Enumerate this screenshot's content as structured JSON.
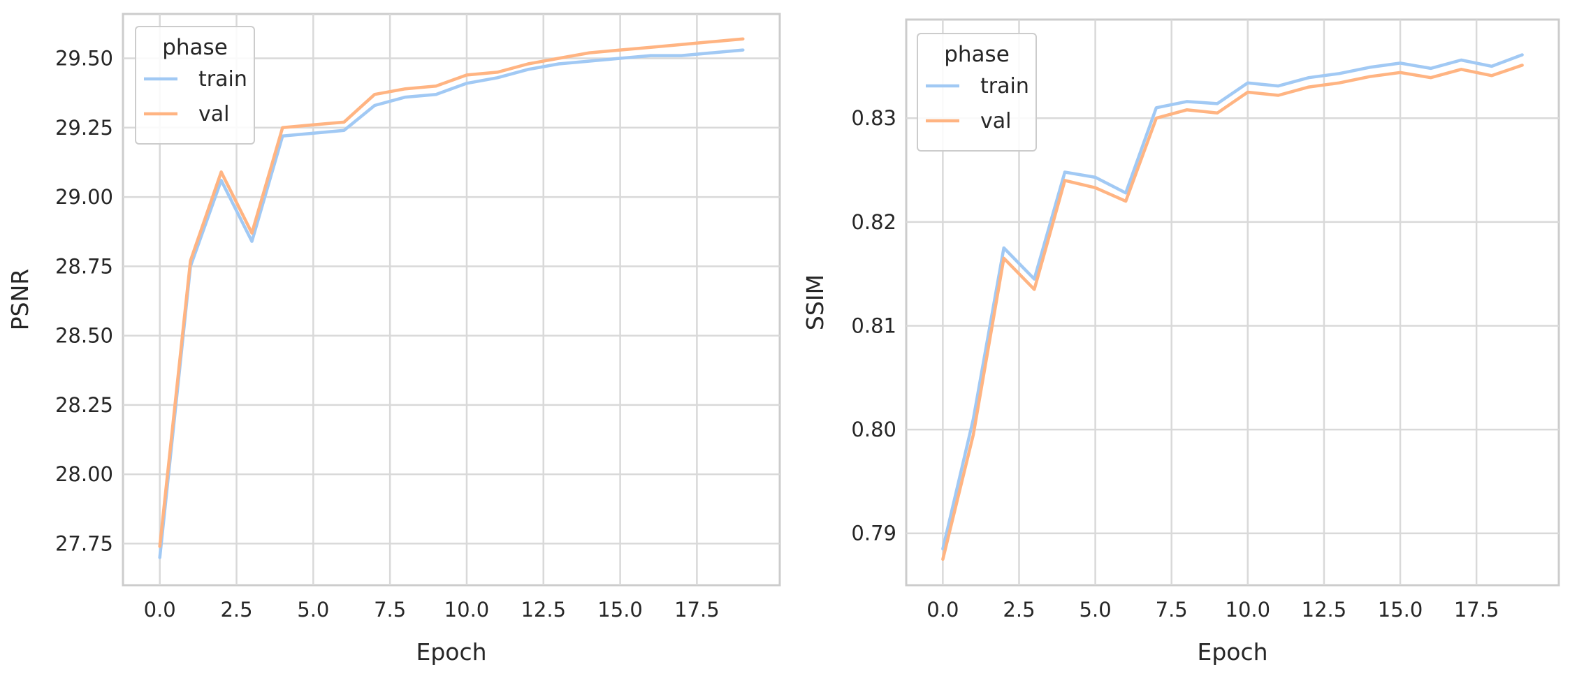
{
  "chart_data": [
    {
      "type": "line",
      "title": "",
      "xlabel": "Epoch",
      "ylabel": "PSNR",
      "xlim": [
        -1.2,
        20.2
      ],
      "ylim": [
        27.6,
        29.66
      ],
      "xticks": [
        0.0,
        2.5,
        5.0,
        7.5,
        10.0,
        12.5,
        15.0,
        17.5
      ],
      "xtick_labels": [
        "0.0",
        "2.5",
        "5.0",
        "7.5",
        "10.0",
        "12.5",
        "15.0",
        "17.5"
      ],
      "yticks": [
        27.75,
        28.0,
        28.25,
        28.5,
        28.75,
        29.0,
        29.25,
        29.5
      ],
      "ytick_labels": [
        "27.75",
        "28.00",
        "28.25",
        "28.50",
        "28.75",
        "29.00",
        "29.25",
        "29.50"
      ],
      "grid": true,
      "legend": {
        "title": "phase",
        "placement": "top-left"
      },
      "x": [
        0,
        1,
        2,
        3,
        4,
        5,
        6,
        7,
        8,
        9,
        10,
        11,
        12,
        13,
        14,
        15,
        16,
        17,
        18,
        19
      ],
      "series": [
        {
          "name": "train",
          "color": "#a1c9f4",
          "values": [
            27.7,
            28.75,
            29.06,
            28.84,
            29.22,
            29.23,
            29.24,
            29.33,
            29.36,
            29.37,
            29.41,
            29.43,
            29.46,
            29.48,
            29.49,
            29.5,
            29.51,
            29.51,
            29.52,
            29.53
          ]
        },
        {
          "name": "val",
          "color": "#ffb482",
          "values": [
            27.74,
            28.77,
            29.09,
            28.87,
            29.25,
            29.26,
            29.27,
            29.37,
            29.39,
            29.4,
            29.44,
            29.45,
            29.48,
            29.5,
            29.52,
            29.53,
            29.54,
            29.55,
            29.56,
            29.57
          ]
        }
      ]
    },
    {
      "type": "line",
      "title": "",
      "xlabel": "Epoch",
      "ylabel": "SSIM",
      "xlim": [
        -1.2,
        20.2
      ],
      "ylim": [
        0.785,
        0.8395
      ],
      "xticks": [
        0.0,
        2.5,
        5.0,
        7.5,
        10.0,
        12.5,
        15.0,
        17.5
      ],
      "xtick_labels": [
        "0.0",
        "2.5",
        "5.0",
        "7.5",
        "10.0",
        "12.5",
        "15.0",
        "17.5"
      ],
      "yticks": [
        0.79,
        0.8,
        0.81,
        0.82,
        0.83
      ],
      "ytick_labels": [
        "0.79",
        "0.80",
        "0.81",
        "0.82",
        "0.83"
      ],
      "grid": true,
      "legend": {
        "title": "phase",
        "placement": "top-left"
      },
      "x": [
        0,
        1,
        2,
        3,
        4,
        5,
        6,
        7,
        8,
        9,
        10,
        11,
        12,
        13,
        14,
        15,
        16,
        17,
        18,
        19
      ],
      "series": [
        {
          "name": "train",
          "color": "#a1c9f4",
          "values": [
            0.7885,
            0.801,
            0.8175,
            0.8145,
            0.8248,
            0.8243,
            0.8228,
            0.831,
            0.8316,
            0.8314,
            0.8334,
            0.8331,
            0.8339,
            0.8343,
            0.8349,
            0.8353,
            0.8348,
            0.8356,
            0.835,
            0.8361
          ]
        },
        {
          "name": "val",
          "color": "#ffb482",
          "values": [
            0.7875,
            0.7995,
            0.8165,
            0.8135,
            0.824,
            0.8233,
            0.822,
            0.83,
            0.8308,
            0.8305,
            0.8325,
            0.8322,
            0.833,
            0.8334,
            0.834,
            0.8344,
            0.8339,
            0.8347,
            0.8341,
            0.8351
          ]
        }
      ]
    }
  ]
}
